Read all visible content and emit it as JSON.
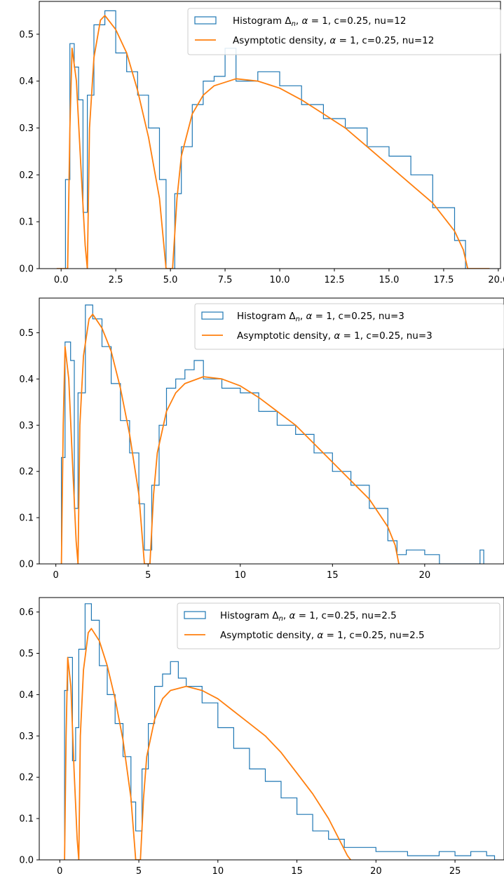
{
  "colors": {
    "histogram": "#1f77b4",
    "density": "#ff7f0e",
    "axes": "#000000",
    "legend_border": "#cccccc"
  },
  "chart_data": [
    {
      "type": "line",
      "title": "",
      "xlabel": "",
      "ylabel": "",
      "xlim": [
        -1.0,
        20.1
      ],
      "ylim": [
        0,
        0.57
      ],
      "xticks": [
        0.0,
        2.5,
        5.0,
        7.5,
        10.0,
        12.5,
        15.0,
        17.5,
        20.0
      ],
      "xtick_labels": [
        "0.0",
        "2.5",
        "5.0",
        "7.5",
        "10.0",
        "12.5",
        "15.0",
        "17.5",
        "20.0"
      ],
      "yticks": [
        0.0,
        0.1,
        0.2,
        0.3,
        0.4,
        0.5
      ],
      "ytick_labels": [
        "0.0",
        "0.1",
        "0.2",
        "0.3",
        "0.4",
        "0.5"
      ],
      "grid": false,
      "legend_position": "top-right",
      "legend": [
        "Histogram Δn, α = 1, c=0.25, nu=12",
        "Asymptotic density, α = 1, c=0.25, nu=12"
      ],
      "series": [
        {
          "name": "Histogram Δn, α = 1, c=0.25, nu=12",
          "kind": "step",
          "x": [
            0.2,
            0.4,
            0.6,
            0.8,
            1.0,
            1.2,
            1.5,
            2.0,
            2.5,
            3.0,
            3.5,
            4.0,
            4.5,
            4.8,
            5.2,
            5.5,
            6.0,
            6.5,
            7.0,
            7.5,
            8.0,
            9.0,
            10.0,
            11.0,
            12.0,
            13.0,
            14.0,
            15.0,
            16.0,
            17.0,
            18.0,
            18.5
          ],
          "y": [
            0.19,
            0.48,
            0.43,
            0.36,
            0.12,
            0.37,
            0.52,
            0.55,
            0.46,
            0.42,
            0.37,
            0.3,
            0.19,
            0.0,
            0.16,
            0.26,
            0.35,
            0.4,
            0.41,
            0.47,
            0.4,
            0.42,
            0.39,
            0.35,
            0.32,
            0.3,
            0.26,
            0.24,
            0.2,
            0.13,
            0.06,
            0.0
          ]
        },
        {
          "name": "Asymptotic density, α = 1, c=0.25, nu=12",
          "kind": "line",
          "x": [
            -0.2,
            0.3,
            0.4,
            0.5,
            0.7,
            0.9,
            1.1,
            1.2,
            1.3,
            1.5,
            1.8,
            2.0,
            2.5,
            3.0,
            3.5,
            4.0,
            4.5,
            4.8,
            5.1,
            5.3,
            5.5,
            6.0,
            6.5,
            7.0,
            8.0,
            9.0,
            10.0,
            11.0,
            12.0,
            13.0,
            14.0,
            15.0,
            16.0,
            17.0,
            18.0,
            18.4,
            18.6,
            19.6
          ],
          "y": [
            0.0,
            0.0,
            0.3,
            0.47,
            0.4,
            0.22,
            0.05,
            0.0,
            0.3,
            0.45,
            0.53,
            0.54,
            0.51,
            0.46,
            0.38,
            0.28,
            0.15,
            0.0,
            0.0,
            0.15,
            0.24,
            0.33,
            0.37,
            0.39,
            0.405,
            0.4,
            0.385,
            0.36,
            0.33,
            0.3,
            0.26,
            0.22,
            0.18,
            0.14,
            0.08,
            0.04,
            0.0,
            0.0
          ]
        }
      ]
    },
    {
      "type": "line",
      "title": "",
      "xlabel": "",
      "ylabel": "",
      "xlim": [
        -0.9,
        24.3
      ],
      "ylim": [
        0,
        0.575
      ],
      "xticks": [
        0,
        5,
        10,
        15,
        20
      ],
      "xtick_labels": [
        "0",
        "5",
        "10",
        "15",
        "20"
      ],
      "yticks": [
        0.0,
        0.1,
        0.2,
        0.3,
        0.4,
        0.5
      ],
      "ytick_labels": [
        "0.0",
        "0.1",
        "0.2",
        "0.3",
        "0.4",
        "0.5"
      ],
      "grid": false,
      "legend_position": "top-right",
      "legend": [
        "Histogram Δn, α = 1, c=0.25, nu=3",
        "Asymptotic density, α = 1, c=0.25, nu=3"
      ],
      "series": [
        {
          "name": "Histogram Δn, α = 1, c=0.25, nu=3",
          "kind": "step",
          "x": [
            0.3,
            0.5,
            0.8,
            1.0,
            1.2,
            1.6,
            2.0,
            2.5,
            3.0,
            3.5,
            4.0,
            4.5,
            4.8,
            5.2,
            5.6,
            6.0,
            6.5,
            7.0,
            7.5,
            8.0,
            9.0,
            10.0,
            11.0,
            12.0,
            13.0,
            14.0,
            15.0,
            16.0,
            17.0,
            18.0,
            18.5,
            19.0,
            20.0,
            20.8,
            23.0,
            23.2
          ],
          "y": [
            0.23,
            0.48,
            0.44,
            0.12,
            0.37,
            0.56,
            0.53,
            0.47,
            0.39,
            0.31,
            0.24,
            0.13,
            0.03,
            0.17,
            0.3,
            0.38,
            0.4,
            0.42,
            0.44,
            0.4,
            0.38,
            0.37,
            0.33,
            0.3,
            0.28,
            0.24,
            0.2,
            0.17,
            0.12,
            0.05,
            0.02,
            0.03,
            0.02,
            0.0,
            0.03,
            0.0
          ]
        },
        {
          "name": "Asymptotic density, α = 1, c=0.25, nu=3",
          "kind": "line",
          "x": [
            0.3,
            0.4,
            0.5,
            0.7,
            0.9,
            1.1,
            1.2,
            1.3,
            1.5,
            1.8,
            2.0,
            2.5,
            3.0,
            3.5,
            4.0,
            4.5,
            4.8,
            5.1,
            5.3,
            5.5,
            6.0,
            6.5,
            7.0,
            8.0,
            9.0,
            10.0,
            11.0,
            12.0,
            13.0,
            14.0,
            15.0,
            16.0,
            17.0,
            18.0,
            18.4,
            18.6
          ],
          "y": [
            0.0,
            0.3,
            0.47,
            0.4,
            0.22,
            0.05,
            0.0,
            0.3,
            0.45,
            0.53,
            0.54,
            0.51,
            0.46,
            0.38,
            0.28,
            0.15,
            0.0,
            0.0,
            0.15,
            0.24,
            0.33,
            0.37,
            0.39,
            0.405,
            0.4,
            0.385,
            0.36,
            0.33,
            0.3,
            0.26,
            0.22,
            0.18,
            0.14,
            0.08,
            0.04,
            0.0
          ]
        }
      ]
    },
    {
      "type": "line",
      "title": "",
      "xlabel": "",
      "ylabel": "",
      "xlim": [
        -1.3,
        28.1
      ],
      "ylim": [
        0,
        0.635
      ],
      "xticks": [
        0,
        5,
        10,
        15,
        20,
        25
      ],
      "xtick_labels": [
        "0",
        "5",
        "10",
        "15",
        "20",
        "25"
      ],
      "yticks": [
        0.0,
        0.1,
        0.2,
        0.3,
        0.4,
        0.5,
        0.6
      ],
      "ytick_labels": [
        "0.0",
        "0.1",
        "0.2",
        "0.3",
        "0.4",
        "0.5",
        "0.6"
      ],
      "grid": false,
      "legend_position": "top-right",
      "legend": [
        "Histogram Δn, α = 1, c=0.25, nu=2.5",
        "Asymptotic density, α = 1, c=0.25, nu=2.5"
      ],
      "series": [
        {
          "name": "Histogram Δn, α = 1, c=0.25, nu=2.5",
          "kind": "step",
          "x": [
            0.3,
            0.5,
            0.8,
            1.0,
            1.2,
            1.6,
            2.0,
            2.5,
            3.0,
            3.5,
            4.0,
            4.5,
            4.8,
            5.2,
            5.6,
            6.0,
            6.5,
            7.0,
            7.5,
            8.0,
            9.0,
            10.0,
            11.0,
            12.0,
            13.0,
            14.0,
            15.0,
            16.0,
            17.0,
            18.0,
            19.0,
            20.0,
            21.0,
            22.0,
            23.0,
            24.0,
            25.0,
            26.0,
            27.0,
            27.5
          ],
          "y": [
            0.41,
            0.49,
            0.24,
            0.32,
            0.51,
            0.62,
            0.58,
            0.47,
            0.4,
            0.33,
            0.25,
            0.14,
            0.07,
            0.22,
            0.33,
            0.42,
            0.45,
            0.48,
            0.44,
            0.42,
            0.38,
            0.32,
            0.27,
            0.22,
            0.19,
            0.15,
            0.11,
            0.07,
            0.05,
            0.03,
            0.03,
            0.02,
            0.02,
            0.01,
            0.01,
            0.02,
            0.01,
            0.02,
            0.01,
            0.0
          ]
        },
        {
          "name": "Asymptotic density, α = 1, c=0.25, nu=2.5",
          "kind": "line",
          "x": [
            0.3,
            0.4,
            0.5,
            0.7,
            0.9,
            1.1,
            1.2,
            1.3,
            1.5,
            1.8,
            2.0,
            2.5,
            3.0,
            3.5,
            4.0,
            4.5,
            4.8,
            5.1,
            5.3,
            5.5,
            6.0,
            6.5,
            7.0,
            8.0,
            9.0,
            10.0,
            11.0,
            12.0,
            13.0,
            14.0,
            15.0,
            16.0,
            17.0,
            17.8,
            18.2,
            18.4
          ],
          "y": [
            0.0,
            0.3,
            0.49,
            0.42,
            0.22,
            0.05,
            0.0,
            0.3,
            0.46,
            0.55,
            0.56,
            0.53,
            0.47,
            0.39,
            0.29,
            0.15,
            0.0,
            0.0,
            0.15,
            0.25,
            0.34,
            0.39,
            0.41,
            0.42,
            0.41,
            0.39,
            0.36,
            0.33,
            0.3,
            0.26,
            0.21,
            0.16,
            0.1,
            0.04,
            0.01,
            0.0
          ]
        }
      ]
    }
  ],
  "panels": [
    {
      "legend": {
        "hist_prefix": "Histogram Δ",
        "hist_sub": "n",
        "hist_mid": ", ",
        "alpha_sym": "α",
        "alpha_eq": " = 1, ",
        "hist_rest": "c=0.25, nu=12",
        "dens_prefix": "Asymptotic density, ",
        "dens_rest": "c=0.25, nu=12"
      }
    },
    {
      "legend": {
        "hist_prefix": "Histogram Δ",
        "hist_sub": "n",
        "hist_mid": ", ",
        "alpha_sym": "α",
        "alpha_eq": " = 1, ",
        "hist_rest": "c=0.25, nu=3",
        "dens_prefix": "Asymptotic density, ",
        "dens_rest": "c=0.25, nu=3"
      }
    },
    {
      "legend": {
        "hist_prefix": "Histogram Δ",
        "hist_sub": "n",
        "hist_mid": ", ",
        "alpha_sym": "α",
        "alpha_eq": " = 1, ",
        "hist_rest": "c=0.25, nu=2.5",
        "dens_prefix": "Asymptotic density, ",
        "dens_rest": "c=0.25, nu=2.5"
      }
    }
  ]
}
